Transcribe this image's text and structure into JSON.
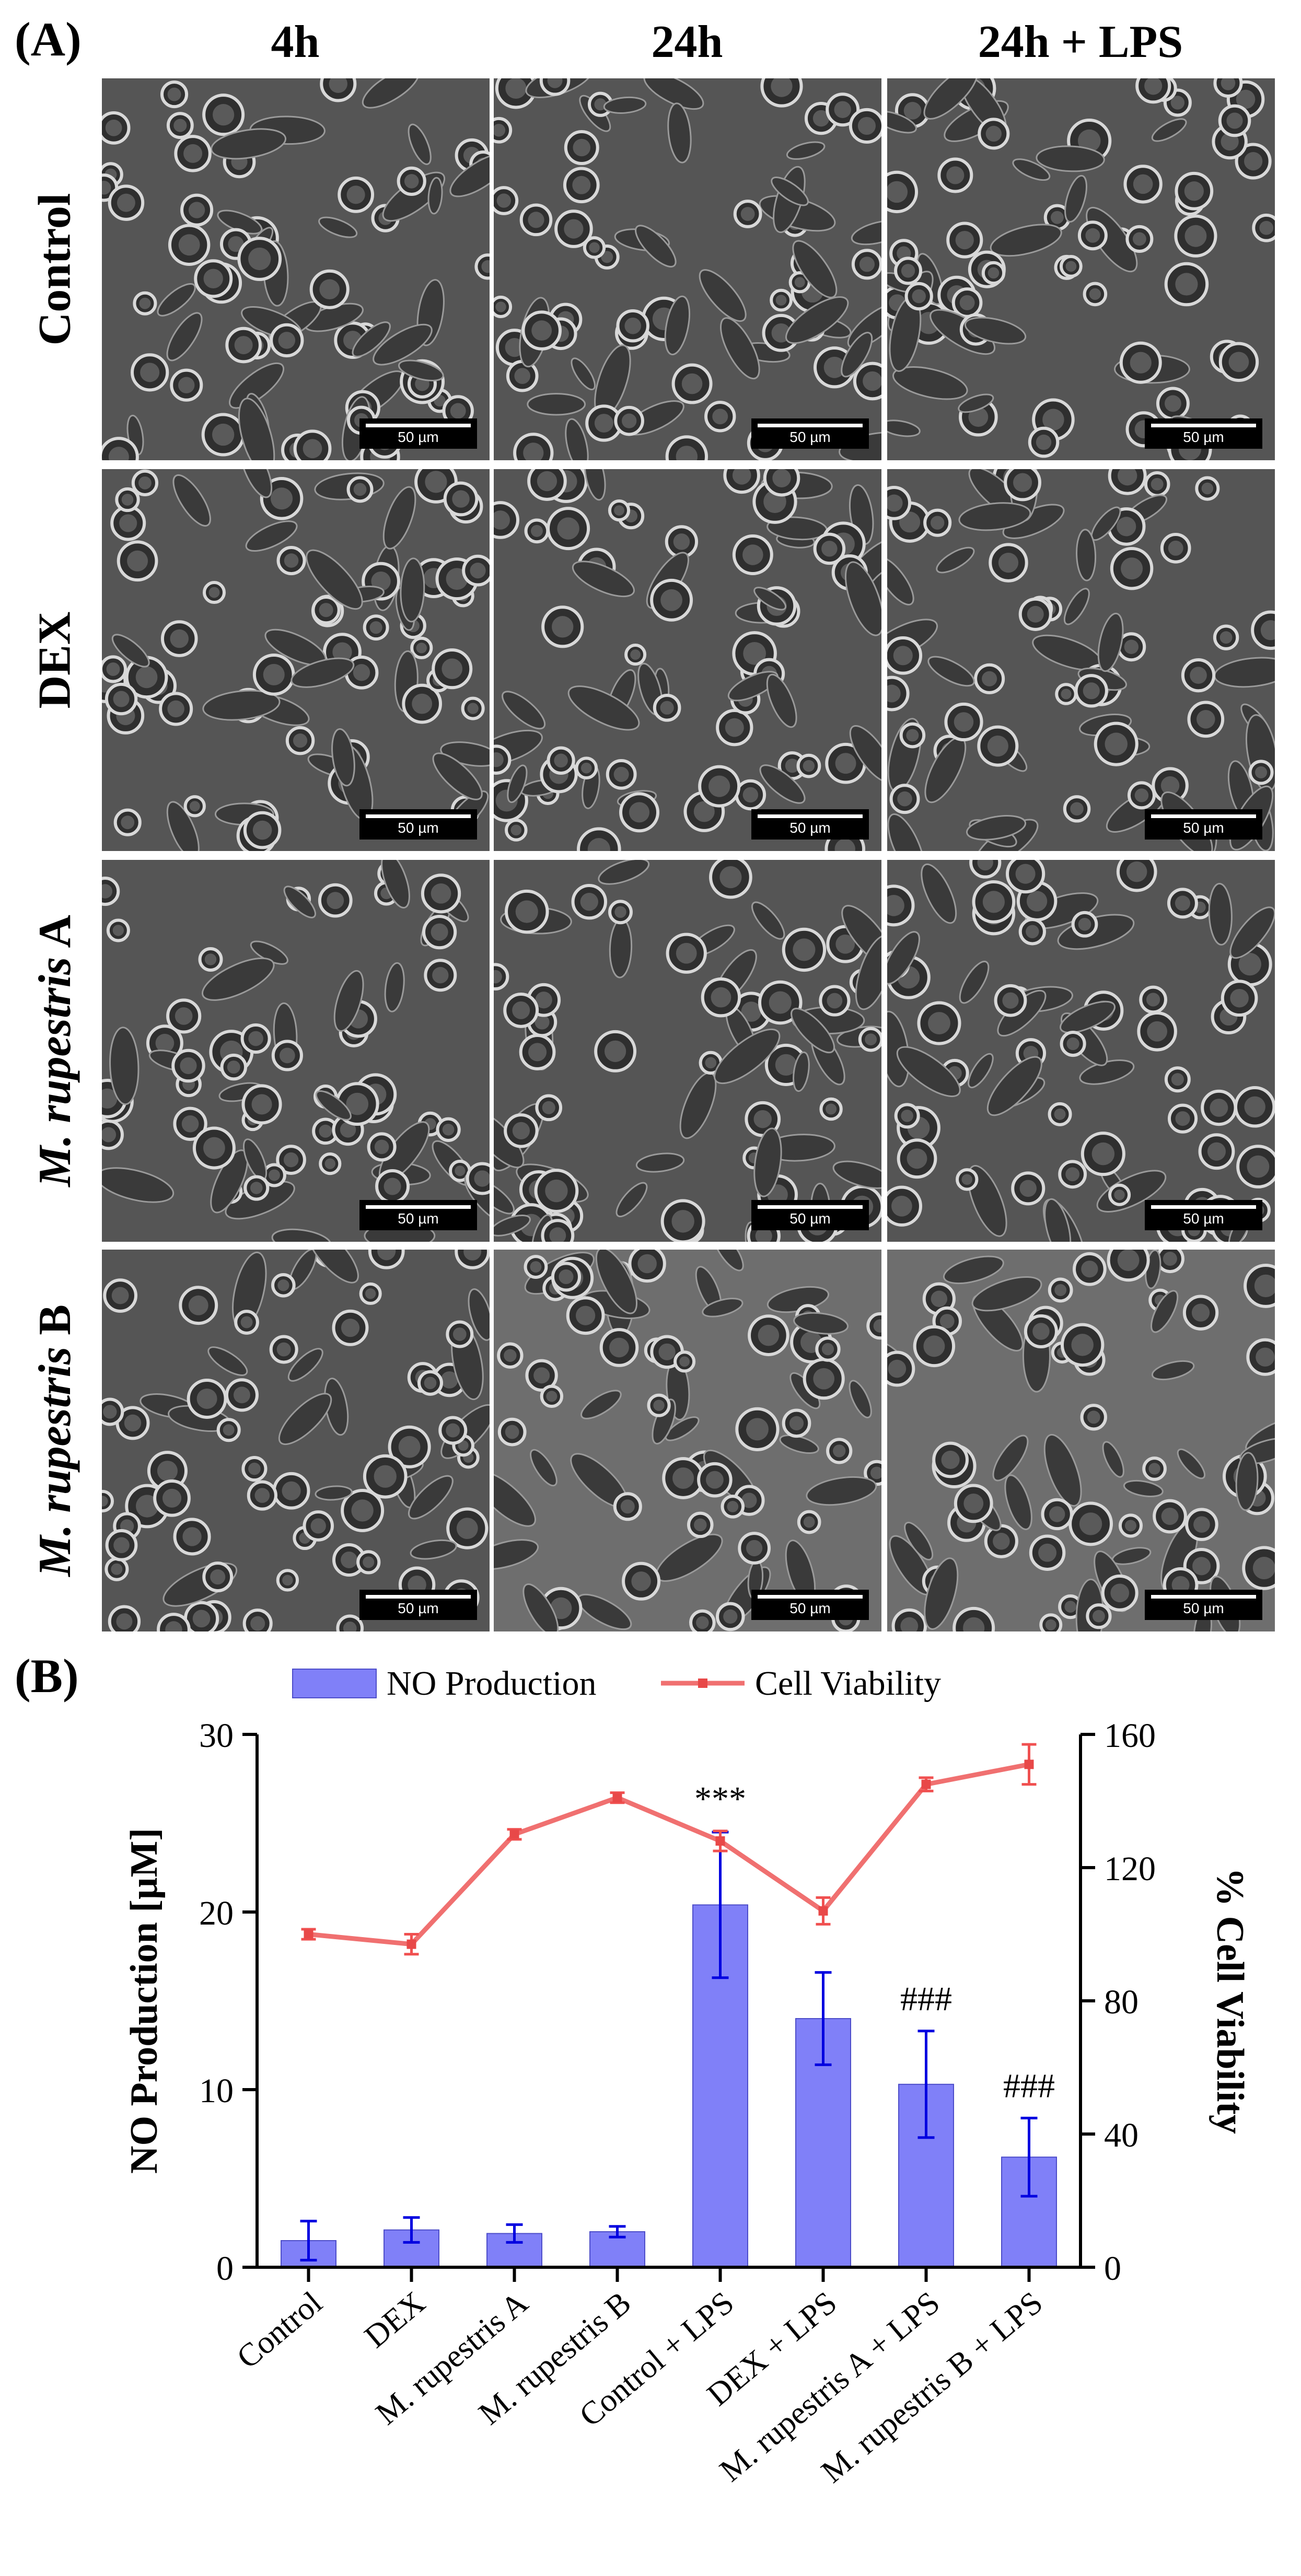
{
  "panel_a": {
    "label": "(A)",
    "columns": [
      "4h",
      "24h",
      "24h + LPS"
    ],
    "rows": [
      {
        "name": "Control",
        "italic": "",
        "suffix": ""
      },
      {
        "name": "DEX",
        "italic": "",
        "suffix": ""
      },
      {
        "name": "",
        "italic": "M. rupestris",
        "suffix": " A"
      },
      {
        "name": "",
        "italic": "M. rupestris",
        "suffix": " B"
      }
    ],
    "scale_label": "50 µm"
  },
  "panel_b": {
    "label": "(B)"
  },
  "chart_data": {
    "type": "bar",
    "categories": [
      "Control",
      "DEX",
      "M. rupestris A",
      "M. rupestris B",
      "Control + LPS",
      "DEX + LPS",
      "M. rupestris A + LPS",
      "M. rupestris B + LPS"
    ],
    "series": [
      {
        "name": "NO Production",
        "type": "bar",
        "axis": "left",
        "color": "#8080f8",
        "values": [
          1.5,
          2.1,
          1.9,
          2.0,
          20.4,
          14.0,
          10.3,
          6.2
        ],
        "errors": [
          1.1,
          0.7,
          0.5,
          0.3,
          4.1,
          2.6,
          3.0,
          2.2
        ]
      },
      {
        "name": "Cell Viability",
        "type": "line",
        "axis": "right",
        "color": "#f07070",
        "values": [
          100,
          97,
          130,
          141,
          128,
          107,
          145,
          151
        ],
        "errors": [
          1.5,
          3.0,
          1.5,
          1.5,
          3.0,
          4.0,
          2.0,
          6.0
        ]
      }
    ],
    "ylabel": "NO Production [µM]",
    "y2label": "% Cell Viability",
    "ylim": [
      0,
      30
    ],
    "y2lim": [
      0,
      160
    ],
    "yticks": [
      0,
      10,
      20,
      30
    ],
    "y2ticks": [
      0,
      40,
      80,
      120,
      160
    ],
    "annotations": [
      {
        "category_index": 4,
        "text": "***"
      },
      {
        "category_index": 6,
        "text": "###"
      },
      {
        "category_index": 7,
        "text": "###"
      }
    ],
    "legend_position": "top-center",
    "error_bar_color": "#0000e0",
    "line_error_color": "#f05050"
  }
}
